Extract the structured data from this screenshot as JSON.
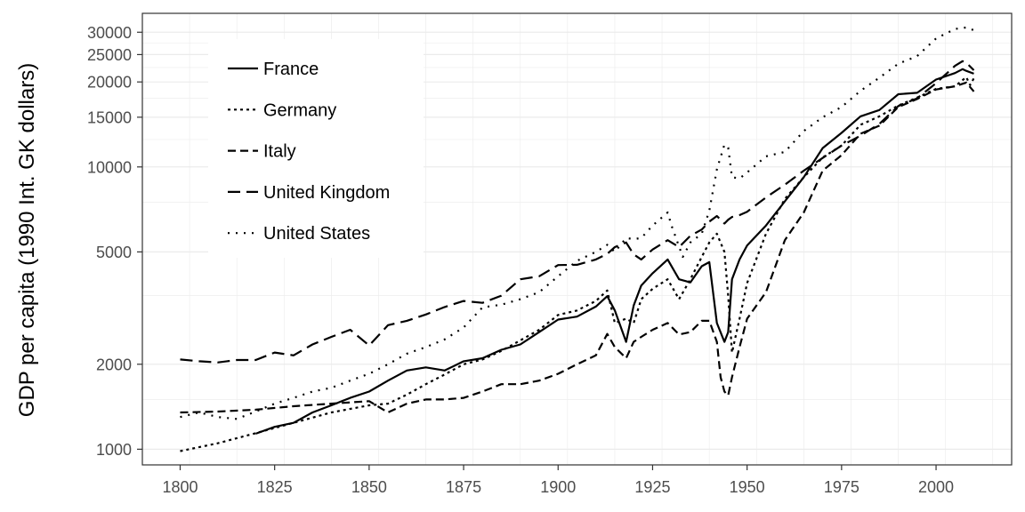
{
  "chart_data": {
    "type": "line",
    "title": "",
    "xlabel": "",
    "ylabel": "GDP per capita (1990 Int. GK dollars)",
    "y_scale": "log",
    "xlim": [
      1790,
      2020
    ],
    "ylim": [
      880,
      35000
    ],
    "x_ticks": [
      1800,
      1825,
      1850,
      1875,
      1900,
      1925,
      1950,
      1975,
      2000
    ],
    "y_ticks": [
      1000,
      2000,
      5000,
      10000,
      15000,
      20000,
      25000,
      30000
    ],
    "x_tick_labels": [
      "1800",
      "1825",
      "1850",
      "1875",
      "1900",
      "1925",
      "1950",
      "1975",
      "2000"
    ],
    "y_tick_labels": [
      "1000",
      "2000",
      "5000",
      "10000",
      "15000",
      "20000",
      "25000",
      "30000"
    ],
    "grid": true,
    "legend_position": "top-left",
    "series": [
      {
        "name": "France",
        "linestyle": "solid",
        "x": [
          1820,
          1825,
          1830,
          1835,
          1840,
          1845,
          1850,
          1855,
          1860,
          1865,
          1870,
          1875,
          1880,
          1885,
          1890,
          1895,
          1900,
          1905,
          1910,
          1913,
          1915,
          1918,
          1920,
          1922,
          1925,
          1929,
          1932,
          1935,
          1938,
          1940,
          1942,
          1944,
          1945,
          1946,
          1948,
          1950,
          1955,
          1960,
          1965,
          1970,
          1975,
          1980,
          1985,
          1990,
          1995,
          2000,
          2005,
          2007,
          2008,
          2010
        ],
        "y": [
          1135,
          1200,
          1240,
          1350,
          1430,
          1520,
          1600,
          1750,
          1900,
          1950,
          1900,
          2050,
          2100,
          2250,
          2350,
          2600,
          2880,
          2950,
          3200,
          3485,
          3100,
          2400,
          3230,
          3800,
          4200,
          4700,
          4000,
          3900,
          4450,
          4600,
          2800,
          2400,
          2600,
          4000,
          4700,
          5270,
          6200,
          7550,
          9200,
          11660,
          13200,
          15100,
          15900,
          18100,
          18300,
          20400,
          21500,
          22200,
          21900,
          21400
        ]
      },
      {
        "name": "Germany",
        "linestyle": "dotted",
        "x": [
          1800,
          1810,
          1820,
          1830,
          1840,
          1850,
          1855,
          1860,
          1865,
          1870,
          1875,
          1880,
          1885,
          1890,
          1895,
          1900,
          1905,
          1910,
          1913,
          1915,
          1918,
          1920,
          1922,
          1925,
          1929,
          1932,
          1935,
          1938,
          1940,
          1942,
          1944,
          1945,
          1946,
          1948,
          1950,
          1955,
          1960,
          1965,
          1970,
          1975,
          1980,
          1985,
          1990,
          1995,
          2000,
          2005,
          2008,
          2009,
          2010
        ],
        "y": [
          985,
          1050,
          1140,
          1240,
          1350,
          1430,
          1450,
          1560,
          1700,
          1840,
          2000,
          2080,
          2230,
          2430,
          2650,
          2990,
          3100,
          3350,
          3650,
          2800,
          2900,
          2800,
          3400,
          3700,
          4000,
          3400,
          4000,
          4800,
          5400,
          5800,
          5000,
          3500,
          2200,
          2900,
          3880,
          5800,
          7700,
          9200,
          10800,
          11900,
          14100,
          15100,
          16500,
          17600,
          18900,
          19300,
          20800,
          19500,
          20600
        ]
      },
      {
        "name": "Italy",
        "linestyle": "dashed",
        "x": [
          1800,
          1810,
          1820,
          1830,
          1840,
          1850,
          1855,
          1860,
          1865,
          1870,
          1875,
          1880,
          1885,
          1890,
          1895,
          1900,
          1905,
          1910,
          1913,
          1915,
          1918,
          1920,
          1922,
          1925,
          1929,
          1932,
          1935,
          1938,
          1940,
          1942,
          1943,
          1944,
          1945,
          1946,
          1948,
          1950,
          1955,
          1960,
          1965,
          1970,
          1975,
          1980,
          1985,
          1990,
          1995,
          2000,
          2005,
          2008,
          2010
        ],
        "y": [
          1350,
          1360,
          1380,
          1420,
          1450,
          1480,
          1350,
          1450,
          1500,
          1500,
          1520,
          1600,
          1700,
          1700,
          1750,
          1850,
          2000,
          2150,
          2560,
          2300,
          2100,
          2400,
          2500,
          2650,
          2800,
          2550,
          2600,
          2850,
          2850,
          2400,
          1800,
          1600,
          1550,
          1800,
          2300,
          2900,
          3600,
          5500,
          6900,
          9700,
          11000,
          13100,
          14000,
          16300,
          17400,
          18800,
          19300,
          19900,
          18500
        ]
      },
      {
        "name": "United Kingdom",
        "linestyle": "longdash",
        "x": [
          1800,
          1805,
          1810,
          1815,
          1820,
          1825,
          1830,
          1835,
          1840,
          1845,
          1850,
          1855,
          1860,
          1865,
          1870,
          1875,
          1880,
          1885,
          1890,
          1895,
          1900,
          1905,
          1910,
          1913,
          1915,
          1918,
          1920,
          1922,
          1925,
          1929,
          1932,
          1935,
          1938,
          1940,
          1942,
          1944,
          1945,
          1946,
          1948,
          1950,
          1955,
          1960,
          1965,
          1970,
          1975,
          1980,
          1985,
          1990,
          1995,
          2000,
          2005,
          2007,
          2008,
          2010
        ],
        "y": [
          2080,
          2050,
          2030,
          2070,
          2070,
          2200,
          2150,
          2350,
          2500,
          2650,
          2330,
          2750,
          2850,
          3000,
          3190,
          3350,
          3300,
          3500,
          4000,
          4100,
          4490,
          4500,
          4700,
          4920,
          5200,
          5400,
          4900,
          4700,
          5100,
          5500,
          5200,
          5700,
          6000,
          6400,
          6700,
          6300,
          6500,
          6650,
          6750,
          6940,
          7800,
          8650,
          9700,
          10760,
          11900,
          12900,
          14200,
          16430,
          17500,
          19800,
          22800,
          23700,
          23400,
          22000
        ]
      },
      {
        "name": "United States",
        "linestyle": "dotdash",
        "x": [
          1800,
          1805,
          1810,
          1815,
          1820,
          1825,
          1830,
          1835,
          1840,
          1845,
          1850,
          1855,
          1860,
          1865,
          1870,
          1875,
          1880,
          1885,
          1890,
          1895,
          1900,
          1905,
          1910,
          1913,
          1915,
          1918,
          1920,
          1922,
          1925,
          1929,
          1930,
          1933,
          1935,
          1938,
          1940,
          1942,
          1944,
          1945,
          1946,
          1948,
          1950,
          1955,
          1960,
          1965,
          1970,
          1975,
          1980,
          1985,
          1990,
          1995,
          2000,
          2005,
          2008,
          2010
        ],
        "y": [
          1300,
          1350,
          1300,
          1280,
          1360,
          1450,
          1520,
          1600,
          1650,
          1750,
          1850,
          2000,
          2180,
          2300,
          2450,
          2700,
          3180,
          3250,
          3400,
          3600,
          4100,
          4650,
          5000,
          5300,
          5000,
          5600,
          5550,
          5600,
          6200,
          6900,
          6200,
          4800,
          5400,
          5800,
          7000,
          9800,
          12000,
          11700,
          9200,
          9100,
          9560,
          10900,
          11300,
          13400,
          15000,
          16300,
          18600,
          20700,
          23200,
          24700,
          28500,
          30800,
          31200,
          30500
        ]
      }
    ]
  }
}
